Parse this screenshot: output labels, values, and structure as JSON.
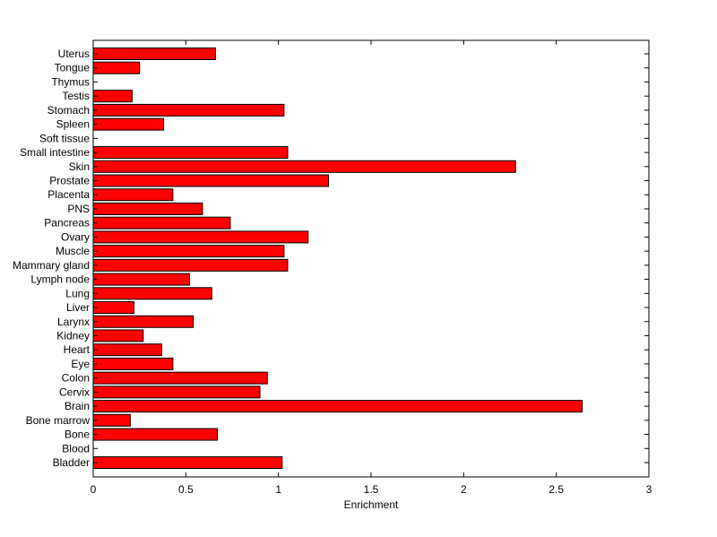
{
  "chart_data": {
    "type": "bar",
    "orientation": "horizontal",
    "title": "",
    "xlabel": "Enrichment",
    "ylabel": "",
    "xlim": [
      0,
      3
    ],
    "xticks": [
      "0",
      "0.5",
      "1",
      "1.5",
      "2",
      "2.5",
      "3"
    ],
    "xtick_values": [
      0,
      0.5,
      1,
      1.5,
      2,
      2.5,
      3
    ],
    "grid": false,
    "bar_color": "#ff0000",
    "categories": [
      "Uterus",
      "Tongue",
      "Thymus",
      "Testis",
      "Stomach",
      "Spleen",
      "Soft tissue",
      "Small intestine",
      "Skin",
      "Prostate",
      "Placenta",
      "PNS",
      "Pancreas",
      "Ovary",
      "Muscle",
      "Mammary gland",
      "Lymph node",
      "Lung",
      "Liver",
      "Larynx",
      "Kidney",
      "Heart",
      "Eye",
      "Colon",
      "Cervix",
      "Brain",
      "Bone marrow",
      "Bone",
      "Blood",
      "Bladder"
    ],
    "values": [
      0.66,
      0.25,
      0,
      0.21,
      1.03,
      0.38,
      0,
      1.05,
      2.28,
      1.27,
      0.43,
      0.59,
      0.74,
      1.16,
      1.03,
      1.05,
      0.52,
      0.64,
      0.22,
      0.54,
      0.27,
      0.37,
      0.43,
      0.94,
      0.9,
      2.64,
      0.2,
      0.67,
      0,
      1.02
    ]
  }
}
